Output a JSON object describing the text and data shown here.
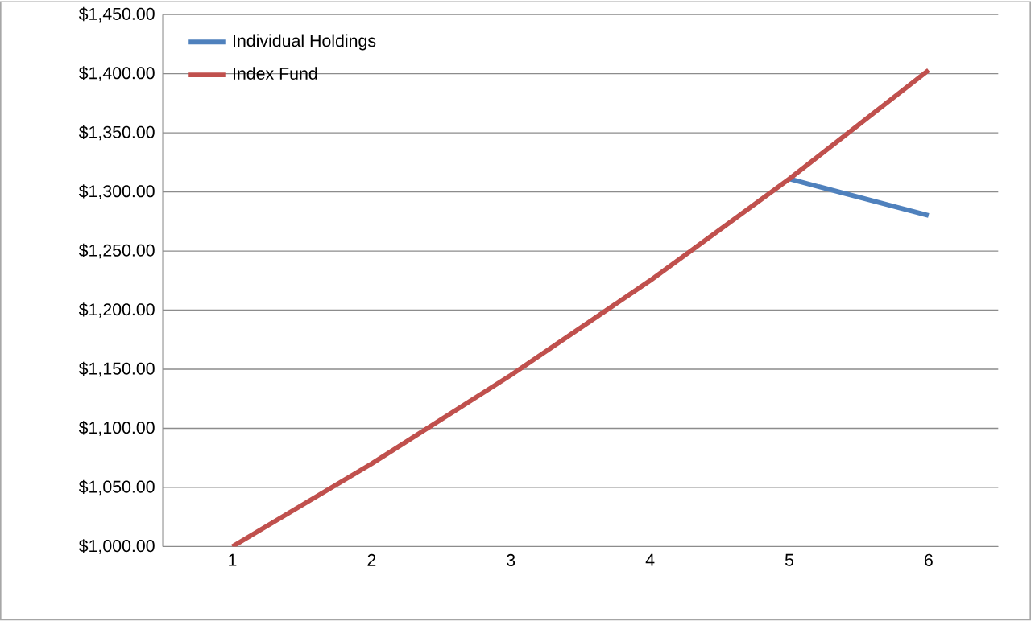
{
  "chart_data": {
    "type": "line",
    "categories": [
      "1",
      "2",
      "3",
      "4",
      "5",
      "6"
    ],
    "series": [
      {
        "name": "Individual Holdings",
        "color": "#4f81bd",
        "values": [
          null,
          null,
          null,
          null,
          1311,
          1280
        ]
      },
      {
        "name": "Index Fund",
        "color": "#c0504d",
        "values": [
          1000,
          1070,
          1145,
          1225,
          1311,
          1403
        ]
      }
    ],
    "ylim": [
      1000,
      1450
    ],
    "yticks": [
      {
        "value": 1000,
        "label": "$1,000.00"
      },
      {
        "value": 1050,
        "label": "$1,050.00"
      },
      {
        "value": 1100,
        "label": "$1,100.00"
      },
      {
        "value": 1150,
        "label": "$1,150.00"
      },
      {
        "value": 1200,
        "label": "$1,200.00"
      },
      {
        "value": 1250,
        "label": "$1,250.00"
      },
      {
        "value": 1300,
        "label": "$1,300.00"
      },
      {
        "value": 1350,
        "label": "$1,350.00"
      },
      {
        "value": 1400,
        "label": "$1,400.00"
      },
      {
        "value": 1450,
        "label": "$1,450.00"
      }
    ],
    "grid": "y",
    "legend": "top left",
    "marker": "none",
    "line_style": "solid"
  }
}
